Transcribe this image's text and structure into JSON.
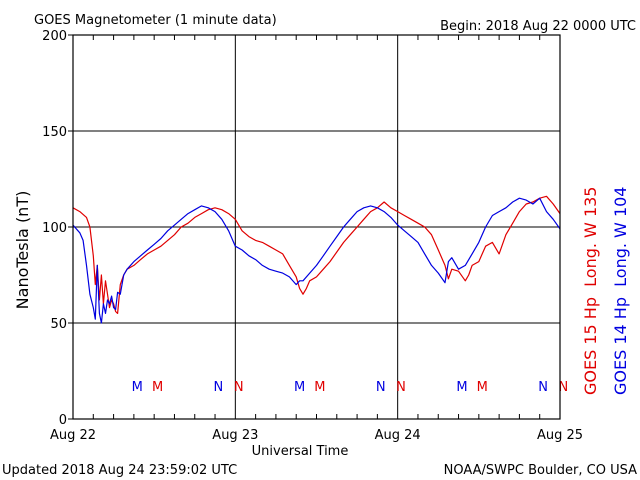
{
  "header": {
    "title": "GOES Magnetometer (1 minute data)",
    "begin": "Begin:  2018 Aug 22 0000 UTC"
  },
  "footer": {
    "updated": "Updated 2018 Aug 24 23:59:02 UTC",
    "source": "NOAA/SWPC Boulder, CO USA"
  },
  "chart_data": {
    "type": "line",
    "title": "GOES Magnetometer (1 minute data)",
    "xlabel": "Universal Time",
    "ylabel": "NanoTesla (nT)",
    "x_unit": "hours since 2018 Aug 22 0000 UTC",
    "xlim": [
      0,
      72
    ],
    "ylim": [
      0,
      200
    ],
    "yticks": [
      0,
      50,
      100,
      150,
      200
    ],
    "xticks": [
      {
        "x": 0,
        "label": "Aug 22"
      },
      {
        "x": 24,
        "label": "Aug 23"
      },
      {
        "x": 48,
        "label": "Aug 24"
      },
      {
        "x": 72,
        "label": "Aug 25"
      }
    ],
    "grid": true,
    "legend": "right side, vertical",
    "colors": {
      "goes15": "#e00000",
      "goes14": "#0000e0"
    },
    "series": [
      {
        "name": "GOES 15 Hp  Long. W 135",
        "key": "goes15",
        "points": [
          [
            0,
            110
          ],
          [
            1,
            108
          ],
          [
            2,
            105
          ],
          [
            2.5,
            100
          ],
          [
            3,
            85
          ],
          [
            3.3,
            70
          ],
          [
            3.6,
            80
          ],
          [
            3.9,
            62
          ],
          [
            4.2,
            75
          ],
          [
            4.5,
            60
          ],
          [
            4.8,
            72
          ],
          [
            5.1,
            65
          ],
          [
            5.4,
            58
          ],
          [
            5.7,
            62
          ],
          [
            6,
            60
          ],
          [
            6.3,
            56
          ],
          [
            6.6,
            55
          ],
          [
            7,
            70
          ],
          [
            7.5,
            75
          ],
          [
            8,
            78
          ],
          [
            9,
            80
          ],
          [
            10,
            83
          ],
          [
            11,
            86
          ],
          [
            12,
            88
          ],
          [
            13,
            90
          ],
          [
            14,
            93
          ],
          [
            15,
            96
          ],
          [
            16,
            100
          ],
          [
            17,
            102
          ],
          [
            18,
            105
          ],
          [
            19,
            107
          ],
          [
            20,
            109
          ],
          [
            21,
            110
          ],
          [
            22,
            109
          ],
          [
            23,
            107
          ],
          [
            24,
            104
          ],
          [
            25,
            98
          ],
          [
            26,
            95
          ],
          [
            27,
            93
          ],
          [
            28,
            92
          ],
          [
            29,
            90
          ],
          [
            30,
            88
          ],
          [
            31,
            86
          ],
          [
            32,
            80
          ],
          [
            33,
            74
          ],
          [
            33.5,
            68
          ],
          [
            34,
            65
          ],
          [
            34.5,
            68
          ],
          [
            35,
            72
          ],
          [
            36,
            74
          ],
          [
            37,
            78
          ],
          [
            38,
            82
          ],
          [
            39,
            87
          ],
          [
            40,
            92
          ],
          [
            41,
            96
          ],
          [
            42,
            100
          ],
          [
            43,
            104
          ],
          [
            44,
            108
          ],
          [
            45,
            110
          ],
          [
            46,
            113
          ],
          [
            47,
            110
          ],
          [
            48,
            108
          ],
          [
            49,
            106
          ],
          [
            50,
            104
          ],
          [
            51,
            102
          ],
          [
            52,
            100
          ],
          [
            53,
            96
          ],
          [
            54,
            88
          ],
          [
            55,
            80
          ],
          [
            55.5,
            73
          ],
          [
            56,
            78
          ],
          [
            57,
            77
          ],
          [
            58,
            72
          ],
          [
            58.5,
            75
          ],
          [
            59,
            80
          ],
          [
            60,
            82
          ],
          [
            61,
            90
          ],
          [
            62,
            92
          ],
          [
            63,
            86
          ],
          [
            64,
            96
          ],
          [
            65,
            102
          ],
          [
            66,
            108
          ],
          [
            67,
            112
          ],
          [
            68,
            113
          ],
          [
            69,
            115
          ],
          [
            70,
            116
          ],
          [
            71,
            112
          ],
          [
            72,
            107
          ]
        ]
      },
      {
        "name": "GOES 14 Hp  Long. W 104",
        "key": "goes14",
        "points": [
          [
            0,
            101
          ],
          [
            1,
            97
          ],
          [
            1.5,
            93
          ],
          [
            2,
            80
          ],
          [
            2.5,
            65
          ],
          [
            3,
            58
          ],
          [
            3.3,
            52
          ],
          [
            3.6,
            80
          ],
          [
            3.9,
            55
          ],
          [
            4.2,
            50
          ],
          [
            4.5,
            60
          ],
          [
            4.8,
            55
          ],
          [
            5.1,
            62
          ],
          [
            5.4,
            60
          ],
          [
            5.7,
            64
          ],
          [
            6,
            58
          ],
          [
            6.3,
            57
          ],
          [
            6.6,
            66
          ],
          [
            7,
            65
          ],
          [
            7.5,
            75
          ],
          [
            8,
            78
          ],
          [
            9,
            82
          ],
          [
            10,
            85
          ],
          [
            11,
            88
          ],
          [
            12,
            91
          ],
          [
            13,
            94
          ],
          [
            14,
            98
          ],
          [
            15,
            101
          ],
          [
            16,
            104
          ],
          [
            17,
            107
          ],
          [
            18,
            109
          ],
          [
            19,
            111
          ],
          [
            20,
            110
          ],
          [
            21,
            108
          ],
          [
            22,
            104
          ],
          [
            23,
            98
          ],
          [
            24,
            90
          ],
          [
            25,
            88
          ],
          [
            26,
            85
          ],
          [
            27,
            83
          ],
          [
            28,
            80
          ],
          [
            29,
            78
          ],
          [
            30,
            77
          ],
          [
            31,
            76
          ],
          [
            32,
            74
          ],
          [
            33,
            70
          ],
          [
            33.5,
            72
          ],
          [
            34,
            72
          ],
          [
            35,
            76
          ],
          [
            36,
            80
          ],
          [
            37,
            85
          ],
          [
            38,
            90
          ],
          [
            39,
            95
          ],
          [
            40,
            100
          ],
          [
            41,
            104
          ],
          [
            42,
            108
          ],
          [
            43,
            110
          ],
          [
            44,
            111
          ],
          [
            45,
            110
          ],
          [
            46,
            108
          ],
          [
            47,
            105
          ],
          [
            48,
            101
          ],
          [
            49,
            98
          ],
          [
            50,
            95
          ],
          [
            51,
            92
          ],
          [
            52,
            86
          ],
          [
            53,
            80
          ],
          [
            54,
            76
          ],
          [
            55,
            71
          ],
          [
            55.5,
            82
          ],
          [
            56,
            84
          ],
          [
            57,
            78
          ],
          [
            58,
            80
          ],
          [
            59,
            86
          ],
          [
            60,
            92
          ],
          [
            61,
            100
          ],
          [
            62,
            106
          ],
          [
            63,
            108
          ],
          [
            64,
            110
          ],
          [
            65,
            113
          ],
          [
            66,
            115
          ],
          [
            67,
            114
          ],
          [
            68,
            112
          ],
          [
            69,
            115
          ],
          [
            70,
            108
          ],
          [
            71,
            104
          ],
          [
            72,
            99
          ]
        ]
      }
    ],
    "annotations": [
      {
        "label": "M",
        "x": 9.5,
        "color": "#0000e0",
        "series": "goes14"
      },
      {
        "label": "M",
        "x": 12.5,
        "color": "#e00000",
        "series": "goes15"
      },
      {
        "label": "N",
        "x": 21.5,
        "color": "#0000e0",
        "series": "goes14"
      },
      {
        "label": "N",
        "x": 24.5,
        "color": "#e00000",
        "series": "goes15"
      },
      {
        "label": "M",
        "x": 33.5,
        "color": "#0000e0",
        "series": "goes14"
      },
      {
        "label": "M",
        "x": 36.5,
        "color": "#e00000",
        "series": "goes15"
      },
      {
        "label": "N",
        "x": 45.5,
        "color": "#0000e0",
        "series": "goes14"
      },
      {
        "label": "N",
        "x": 48.5,
        "color": "#e00000",
        "series": "goes15"
      },
      {
        "label": "M",
        "x": 57.5,
        "color": "#0000e0",
        "series": "goes14"
      },
      {
        "label": "M",
        "x": 60.5,
        "color": "#e00000",
        "series": "goes15"
      },
      {
        "label": "N",
        "x": 69.5,
        "color": "#0000e0",
        "series": "goes14"
      },
      {
        "label": "N",
        "x": 72.5,
        "color": "#e00000",
        "series": "goes15"
      }
    ]
  }
}
